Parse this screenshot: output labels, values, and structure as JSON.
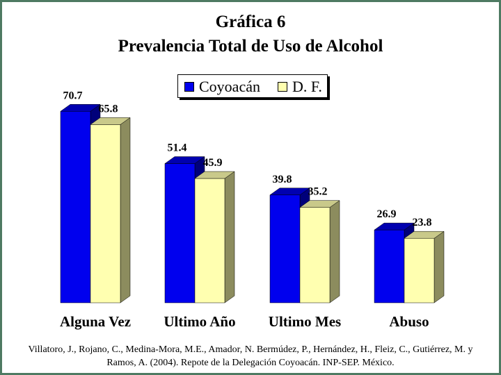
{
  "chart_data": {
    "type": "bar",
    "title": "Gráfica 6",
    "subtitle": "Prevalencia Total de Uso de Alcohol",
    "categories": [
      "Alguna Vez",
      "Ultimo Año",
      "Ultimo Mes",
      "Abuso"
    ],
    "series": [
      {
        "name": "Coyoacán",
        "values": [
          70.7,
          51.4,
          39.8,
          26.9
        ],
        "color": "#0000ee",
        "top_color": "#0000b0",
        "side_color": "#00007a"
      },
      {
        "name": "D. F.",
        "values": [
          65.8,
          45.9,
          35.2,
          23.8
        ],
        "color": "#ffffb0",
        "top_color": "#c9c98a",
        "side_color": "#8c8c5e"
      }
    ],
    "value_labels": [
      [
        "70.7",
        "51.4",
        "39.8",
        "26.9"
      ],
      [
        "65.8",
        "45.9",
        "35.2",
        "23.8"
      ]
    ],
    "legend_position": "top-center",
    "grid": false,
    "style": "3d-bar"
  },
  "source": "Villatoro, J., Rojano, C., Medina-Mora, M.E., Amador, N. Bermúdez, P., Hernández, H., Fleiz, C., Gutiérrez, M. y Ramos, A. (2004). Repote de la Delegación Coyoacán. INP-SEP. México.",
  "colors": {
    "frame": "#4e7a62",
    "background": "#ffffff"
  }
}
